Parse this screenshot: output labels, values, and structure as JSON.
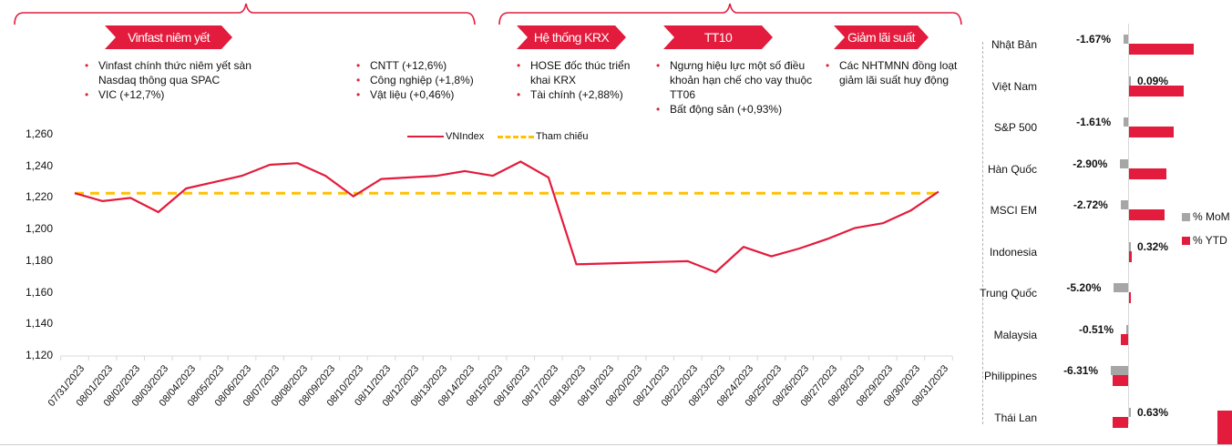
{
  "colors": {
    "accent": "#e31b3c",
    "reference": "#ffc000",
    "mom": "#a6a6a6",
    "ytd": "#e31b3c",
    "axis": "#d9d9d9"
  },
  "annotations": [
    {
      "tag": "Vinfast niêm yết",
      "bullets_left": [
        "Vinfast chính thức niêm yết sàn Nasdaq thông qua SPAC",
        "VIC (+12,7%)"
      ],
      "bullets_right": [
        "CNTT (+12,6%)",
        "Công nghiệp (+1,8%)",
        "Vật liệu (+0,46%)"
      ]
    },
    {
      "tag": "Hệ thống KRX",
      "bullets": [
        "HOSE đốc thúc triển khai KRX",
        "Tài chính (+2,88%)"
      ]
    },
    {
      "tag": "TT10",
      "bullets": [
        "Ngưng hiệu lực một số điều khoản hạn chế cho vay thuộc TT06",
        "Bất động sản (+0,93%)"
      ]
    },
    {
      "tag": "Giảm lãi suất",
      "bullets": [
        "Các NHTMNN đồng loạt giảm lãi suất huy động"
      ]
    }
  ],
  "chart_data": [
    {
      "type": "line",
      "title": "",
      "xlabel": "",
      "ylabel": "",
      "ylim": [
        1120,
        1260
      ],
      "yticks": [
        "1,260",
        "1,240",
        "1,220",
        "1,200",
        "1,180",
        "1,160",
        "1,140",
        "1,120"
      ],
      "ytick_values": [
        1260,
        1240,
        1220,
        1200,
        1180,
        1160,
        1140,
        1120
      ],
      "grid": false,
      "legend_position": "top-right",
      "x": [
        "07/31/2023",
        "08/01/2023",
        "08/02/2023",
        "08/03/2023",
        "08/04/2023",
        "08/05/2023",
        "08/06/2023",
        "08/07/2023",
        "08/08/2023",
        "08/09/2023",
        "08/10/2023",
        "08/11/2023",
        "08/12/2023",
        "08/13/2023",
        "08/14/2023",
        "08/15/2023",
        "08/16/2023",
        "08/17/2023",
        "08/18/2023",
        "08/19/2023",
        "08/20/2023",
        "08/21/2023",
        "08/22/2023",
        "08/23/2023",
        "08/24/2023",
        "08/25/2023",
        "08/26/2023",
        "08/27/2023",
        "08/28/2023",
        "08/29/2023",
        "08/30/2023",
        "08/31/2023"
      ],
      "series": [
        {
          "name": "VNIndex",
          "style": "solid",
          "values": [
            1223,
            1218,
            1220,
            1211,
            1226,
            1230,
            1234,
            1241,
            1242,
            1234,
            1221,
            1232,
            1233,
            1234,
            1237,
            1234,
            1243,
            1233,
            1178,
            1178.5,
            1179,
            1179.5,
            1180,
            1173,
            1189,
            1183,
            1188,
            1194,
            1201,
            1204,
            1212,
            1224
          ]
        },
        {
          "name": "Tham chiếu",
          "style": "dashed",
          "value": 1223
        }
      ]
    },
    {
      "type": "bar",
      "orientation": "horizontal",
      "title": "",
      "categories": [
        "Nhật Bản",
        "Việt Nam",
        "S&P 500",
        "Hàn Quốc",
        "MSCI EM",
        "Indonesia",
        "Trung Quốc",
        "Malaysia",
        "Philippines",
        "Thái Lan"
      ],
      "series": [
        {
          "name": "% MoM",
          "values": [
            -1.67,
            0.09,
            -1.61,
            -2.9,
            -2.72,
            0.32,
            -5.2,
            -0.51,
            -6.31,
            0.63
          ],
          "labels": [
            "-1.67%",
            "0.09%",
            "-1.61%",
            "-2.90%",
            "-2.72%",
            "0.32%",
            "-5.20%",
            "-0.51%",
            "-6.31%",
            "0.63%"
          ]
        },
        {
          "name": "% YTD",
          "values": [
            25.5,
            21.5,
            17.5,
            14.5,
            13.8,
            1.0,
            0.5,
            -3.0,
            -6.0,
            -6.0
          ]
        }
      ],
      "legend_position": "right"
    }
  ]
}
